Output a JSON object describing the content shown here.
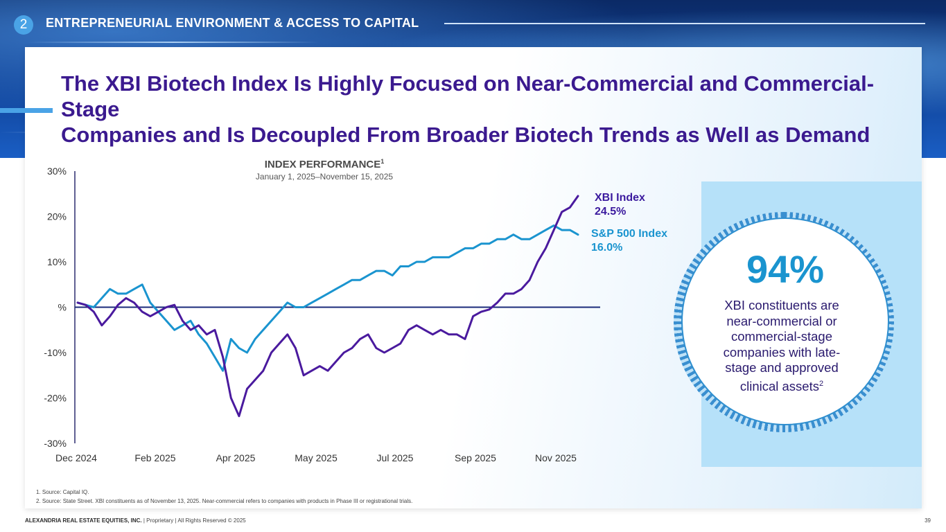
{
  "section": {
    "number": "2",
    "title": "ENTREPRENEURIAL ENVIRONMENT & ACCESS TO CAPITAL"
  },
  "title": {
    "line1": "The XBI Biotech Index Is Highly Focused on Near-Commercial and Commercial-Stage",
    "line2": "Companies and Is Decoupled From Broader Biotech Trends as Well as Demand"
  },
  "chart_heading": {
    "title": "INDEX PERFORMANCE",
    "title_sup": "1",
    "subtitle": "January 1, 2025–November 15, 2025"
  },
  "chart_data": {
    "type": "line",
    "title": "INDEX PERFORMANCE",
    "subtitle": "January 1, 2025–November 15, 2025",
    "xlabel": "",
    "ylabel": "",
    "ylim": [
      -30,
      30
    ],
    "y_ticks": [
      30,
      20,
      10,
      0,
      -10,
      -20,
      -30
    ],
    "y_tick_labels": [
      "30%",
      "20%",
      "10%",
      "%",
      "-10%",
      "-20%",
      "-30%"
    ],
    "x_tick_labels": [
      "Dec 2024",
      "Feb 2025",
      "Apr 2025",
      "May 2025",
      "Jul 2025",
      "Sep 2025",
      "Nov 2025"
    ],
    "x_tick_positions": [
      0,
      1,
      2,
      3,
      4,
      5,
      6
    ],
    "x": [
      0.0,
      0.1,
      0.2,
      0.3,
      0.4,
      0.5,
      0.6,
      0.7,
      0.8,
      0.9,
      1.0,
      1.1,
      1.2,
      1.3,
      1.4,
      1.5,
      1.6,
      1.7,
      1.8,
      1.9,
      2.0,
      2.1,
      2.2,
      2.3,
      2.4,
      2.5,
      2.6,
      2.7,
      2.8,
      2.9,
      3.0,
      3.1,
      3.2,
      3.3,
      3.4,
      3.5,
      3.6,
      3.7,
      3.8,
      3.9,
      4.0,
      4.1,
      4.2,
      4.3,
      4.4,
      4.5,
      4.6,
      4.7,
      4.8,
      4.9,
      5.0,
      5.1,
      5.2,
      5.3,
      5.4,
      5.5,
      5.6,
      5.7,
      5.8,
      5.9,
      6.0,
      6.1,
      6.2
    ],
    "series": [
      {
        "name": "XBI Index",
        "color": "#4a1a9e",
        "end_value": "24.5%",
        "values": [
          1,
          0.5,
          -1,
          -4,
          -2,
          0.5,
          2,
          1,
          -1,
          -2,
          -1,
          0,
          0.5,
          -3,
          -5,
          -4,
          -6,
          -5,
          -11,
          -20,
          -24,
          -18,
          -16,
          -14,
          -10,
          -8,
          -6,
          -9,
          -15,
          -14,
          -13,
          -14,
          -12,
          -10,
          -9,
          -7,
          -6,
          -9,
          -10,
          -9,
          -8,
          -5,
          -4,
          -5,
          -6,
          -5,
          -6,
          -6,
          -7,
          -2,
          -1,
          -0.5,
          1,
          3,
          3,
          4,
          6,
          10,
          13,
          17,
          21,
          22,
          24.5
        ]
      },
      {
        "name": "S&P 500 Index",
        "color": "#1a94cf",
        "end_value": "16.0%",
        "values": [
          1,
          0.5,
          0,
          2,
          4,
          3,
          3,
          4,
          5,
          1,
          -1,
          -3,
          -5,
          -4,
          -3,
          -6,
          -8,
          -11,
          -14,
          -7,
          -9,
          -10,
          -7,
          -5,
          -3,
          -1,
          1,
          0,
          0,
          1,
          2,
          3,
          4,
          5,
          6,
          6,
          7,
          8,
          8,
          7,
          9,
          9,
          10,
          10,
          11,
          11,
          11,
          12,
          13,
          13,
          14,
          14,
          15,
          15,
          16,
          15,
          15,
          16,
          17,
          18,
          17,
          17,
          16
        ]
      }
    ],
    "legend_placement": "right"
  },
  "callout": {
    "percent": "94%",
    "caption_line1": "XBI constituents are",
    "caption_line2": "near-commercial or",
    "caption_line3": "commercial-stage",
    "caption_line4": "companies with late-",
    "caption_line5": "stage and approved",
    "caption_line6": "clinical assets",
    "caption_sup": "2"
  },
  "labels": {
    "xbi_name": "XBI Index",
    "sp_name": "S&P 500 Index"
  },
  "footnotes": [
    "1.   Source: Capital IQ.",
    "2.   Source: State Street. XBI constituents as of November 13, 2025. Near-commercial refers to companies with products in Phase III or registrational trials."
  ],
  "footer": {
    "company": "ALEXANDRIA REAL ESTATE EQUITIES, INC.",
    "rights": " | Proprietary | All Rights Reserved © 2025",
    "page": "39"
  },
  "colors": {
    "title": "#3b1a8f",
    "xbi": "#4a1a9e",
    "sp500": "#1a94cf",
    "accent": "#4aa3e6"
  }
}
